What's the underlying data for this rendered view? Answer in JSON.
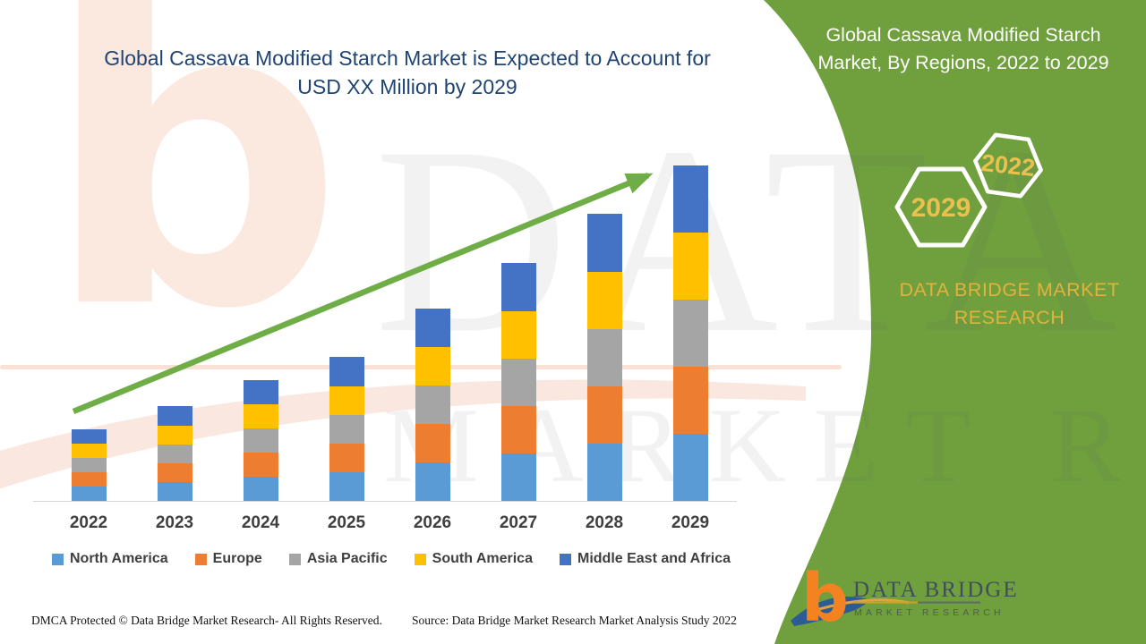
{
  "main_title": {
    "line1": "Global Cassava Modified Starch Market is Expected to Account for",
    "line2": "USD XX Million by 2029"
  },
  "side_panel": {
    "title_line1": "Global Cassava Modified Starch",
    "title_line2": "Market, By Regions, 2022 to 2029",
    "hexagon_front_label": "2029",
    "hexagon_back_label": "2022",
    "brand_line1": "DATA BRIDGE MARKET",
    "brand_line2": "RESEARCH",
    "green_color": "#70A03E",
    "gold_color": "#E2B23D",
    "hexagon_year_color": "#EAC14E"
  },
  "watermark": {
    "letter": "b",
    "line1": "DATA BRIDGE",
    "line2": "MARKET RESEARCH"
  },
  "footer": {
    "left": "DMCA Protected © Data Bridge Market Research- All Rights Reserved.",
    "right": "Source: Data Bridge Market Research Market Analysis Study 2022"
  },
  "logo": {
    "name": "DATA BRIDGE",
    "subtitle": "MARKET RESEARCH",
    "orange": "#F58220",
    "blue": "#2D5C94",
    "text_color": "#3E4E5C"
  },
  "chart_data": {
    "type": "bar",
    "stacked": true,
    "title": "Global Cassava Modified Starch Market, By Regions, 2022 to 2029",
    "categories": [
      "2022",
      "2023",
      "2024",
      "2025",
      "2026",
      "2027",
      "2028",
      "2029"
    ],
    "series": [
      {
        "name": "North America",
        "color": "#5B9BD5",
        "values": [
          16,
          21,
          27,
          32,
          43,
          53,
          64,
          75
        ]
      },
      {
        "name": "Europe",
        "color": "#ED7D31",
        "values": [
          16,
          21,
          27,
          32,
          43,
          53,
          64,
          75
        ]
      },
      {
        "name": "Asia Pacific",
        "color": "#A5A5A5",
        "values": [
          16,
          21,
          27,
          32,
          43,
          53,
          64,
          75
        ]
      },
      {
        "name": "South America",
        "color": "#FFC000",
        "values": [
          16,
          21,
          27,
          32,
          43,
          53,
          64,
          75
        ]
      },
      {
        "name": "Middle East and Africa",
        "color": "#4472C4",
        "values": [
          16,
          22,
          27,
          33,
          43,
          54,
          65,
          75
        ]
      }
    ],
    "xlabel": "",
    "ylabel": "",
    "value_axis_visible": false,
    "data_labels_visible": false,
    "units_note": "values unlabeled in source (USD XX Million placeholder); series values are relative estimates",
    "gridlines": false,
    "legend_position": "bottom",
    "trend_arrow_color": "#6FAD47"
  }
}
